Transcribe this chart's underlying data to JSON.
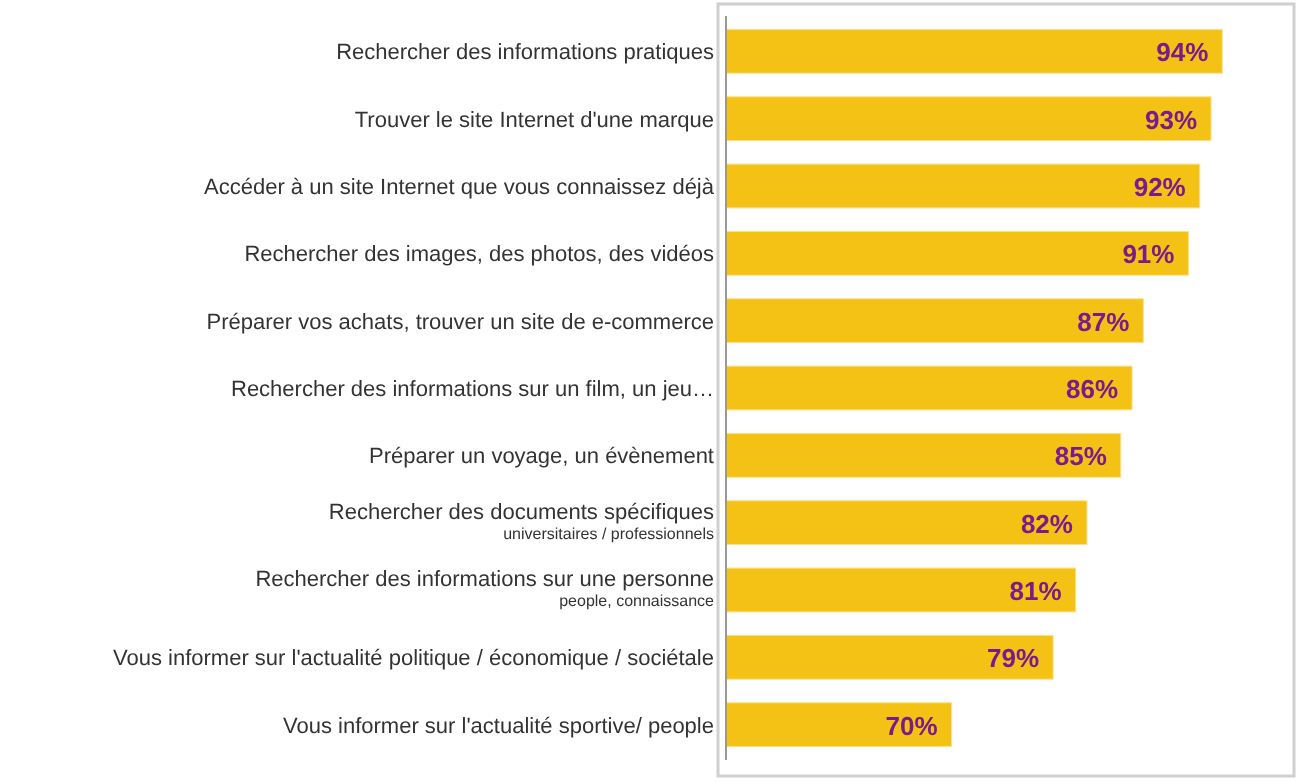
{
  "chart_data": {
    "type": "bar",
    "orientation": "horizontal",
    "categories": [
      "Rechercher des informations pratiques",
      "Trouver le site Internet d'une marque",
      "Accéder à un site Internet que vous connaissez déjà",
      "Rechercher des images, des photos, des vidéos",
      "Préparer vos achats, trouver un site de e-commerce",
      "Rechercher des informations sur un film, un jeu…",
      "Préparer un voyage, un évènement",
      "Rechercher des documents spécifiques\nuniversitaires / professionnels",
      "Rechercher des informations sur une personne\npeople, connaissance",
      "Vous informer sur l'actualité politique / économique / sociétale",
      "Vous informer sur l'actualité sportive/ people"
    ],
    "values": [
      94,
      93,
      92,
      91,
      87,
      86,
      85,
      82,
      81,
      79,
      70
    ],
    "value_labels": [
      "94%",
      "93%",
      "92%",
      "91%",
      "87%",
      "86%",
      "85%",
      "82%",
      "81%",
      "79%",
      "70%"
    ],
    "color": "#f4c214",
    "xlim": [
      50,
      100
    ],
    "tick_labels": "y"
  }
}
